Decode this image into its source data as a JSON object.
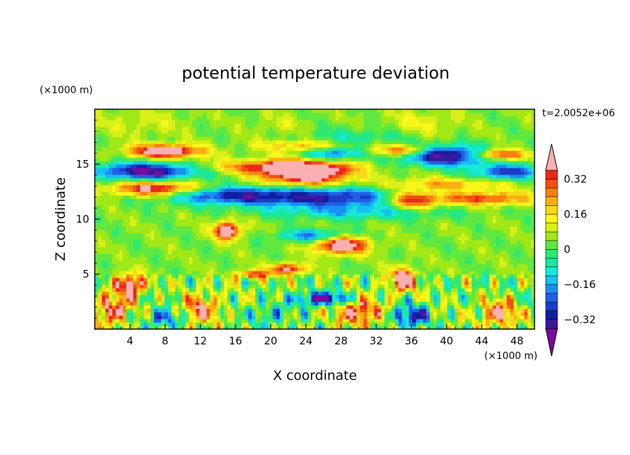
{
  "chart_data": {
    "type": "heatmap",
    "title": "potential temperature deviation",
    "xlabel": "X coordinate",
    "ylabel": "Z coordinate",
    "x_unit": "(×1000 m)",
    "y_unit": "(×1000 m)",
    "time_label": "t=2.0052e+06",
    "xlim": [
      0,
      50
    ],
    "ylim": [
      0,
      20
    ],
    "x_ticks": [
      "4",
      "8",
      "12",
      "16",
      "20",
      "24",
      "28",
      "32",
      "36",
      "40",
      "44",
      "48"
    ],
    "x_tick_values": [
      4,
      8,
      12,
      16,
      20,
      24,
      28,
      32,
      36,
      40,
      44,
      48
    ],
    "y_ticks": [
      "5",
      "10",
      "15"
    ],
    "y_tick_values": [
      5,
      10,
      15
    ],
    "colorbar": {
      "levels": [
        -0.44,
        -0.4,
        -0.36,
        -0.32,
        -0.28,
        -0.24,
        -0.2,
        -0.16,
        -0.12,
        -0.08,
        -0.04,
        0,
        0.04,
        0.08,
        0.12,
        0.16,
        0.2,
        0.24,
        0.28,
        0.32,
        0.36,
        0.4
      ],
      "labels": [
        "0.32",
        "0.16",
        "0",
        "−0.16",
        "−0.32"
      ],
      "label_values": [
        0.32,
        0.16,
        0,
        -0.16,
        -0.32
      ],
      "colors": [
        "#7a0a9e",
        "#3a1a9c",
        "#0f1fa0",
        "#1a3ec8",
        "#2060e8",
        "#1890f0",
        "#18c0f0",
        "#18e8d8",
        "#18e8a0",
        "#30e870",
        "#60e840",
        "#a0e818",
        "#d8f018",
        "#f8f818",
        "#f8d818",
        "#f8b010",
        "#f88010",
        "#f05010",
        "#e82818",
        "#f8b0b0"
      ],
      "extend": "both"
    },
    "field": {
      "description_none": "",
      "background_value": 0.0,
      "features": [
        {
          "x": 5,
          "y": 18.8,
          "sx": 5,
          "sy": 1.2,
          "v": 0.06
        },
        {
          "x": 37,
          "y": 18.8,
          "sx": 4,
          "sy": 1.2,
          "v": 0.08
        },
        {
          "x": 21,
          "y": 18.6,
          "sx": 3,
          "sy": 1.0,
          "v": 0.05
        },
        {
          "x": 30,
          "y": 17.5,
          "sx": 6,
          "sy": 0.8,
          "v": -0.1
        },
        {
          "x": 8,
          "y": 16.2,
          "sx": 4,
          "sy": 0.6,
          "v": 0.45
        },
        {
          "x": 24,
          "y": 16.7,
          "sx": 5,
          "sy": 0.5,
          "v": 0.2
        },
        {
          "x": 35,
          "y": 16.3,
          "sx": 3,
          "sy": 0.5,
          "v": 0.3
        },
        {
          "x": 46,
          "y": 15.9,
          "sx": 3,
          "sy": 0.5,
          "v": 0.35
        },
        {
          "x": 27,
          "y": 16.0,
          "sx": 3,
          "sy": 0.7,
          "v": -0.28
        },
        {
          "x": 40,
          "y": 15.8,
          "sx": 5,
          "sy": 0.9,
          "v": -0.42
        },
        {
          "x": 6,
          "y": 14.4,
          "sx": 6,
          "sy": 0.8,
          "v": -0.42
        },
        {
          "x": 20,
          "y": 14.8,
          "sx": 8,
          "sy": 0.6,
          "v": 0.25
        },
        {
          "x": 24,
          "y": 14.2,
          "sx": 5,
          "sy": 1.1,
          "v": 0.48
        },
        {
          "x": 47,
          "y": 14.3,
          "sx": 4,
          "sy": 0.7,
          "v": -0.3
        },
        {
          "x": 40,
          "y": 13.2,
          "sx": 7,
          "sy": 0.6,
          "v": 0.18
        },
        {
          "x": 7,
          "y": 12.8,
          "sx": 5,
          "sy": 0.7,
          "v": 0.4
        },
        {
          "x": 15,
          "y": 12.2,
          "sx": 8,
          "sy": 0.8,
          "v": -0.3
        },
        {
          "x": 27,
          "y": 12.0,
          "sx": 9,
          "sy": 1.0,
          "v": -0.32
        },
        {
          "x": 36,
          "y": 11.8,
          "sx": 3,
          "sy": 0.8,
          "v": 0.35
        },
        {
          "x": 44,
          "y": 11.9,
          "sx": 6,
          "sy": 0.6,
          "v": 0.28
        },
        {
          "x": 30,
          "y": 10.6,
          "sx": 10,
          "sy": 0.6,
          "v": -0.14
        },
        {
          "x": 15,
          "y": 9.0,
          "sx": 1.5,
          "sy": 0.8,
          "v": 0.45
        },
        {
          "x": 28,
          "y": 7.7,
          "sx": 3,
          "sy": 0.8,
          "v": 0.45
        },
        {
          "x": 25,
          "y": 8.5,
          "sx": 4,
          "sy": 0.6,
          "v": -0.25
        },
        {
          "x": 22,
          "y": 5.5,
          "sx": 2,
          "sy": 0.5,
          "v": 0.35
        },
        {
          "x": 18,
          "y": 5.0,
          "sx": 2,
          "sy": 0.4,
          "v": 0.3
        },
        {
          "x": 4,
          "y": 4.0,
          "sx": 1.5,
          "sy": 1.0,
          "v": 0.45
        },
        {
          "x": 35,
          "y": 4.5,
          "sx": 1.5,
          "sy": 1.0,
          "v": 0.45
        },
        {
          "x": 2,
          "y": 1.8,
          "sx": 2,
          "sy": 1.3,
          "v": 0.32
        },
        {
          "x": 12,
          "y": 1.8,
          "sx": 2,
          "sy": 1.3,
          "v": 0.3
        },
        {
          "x": 30,
          "y": 1.6,
          "sx": 2.5,
          "sy": 1.2,
          "v": 0.34
        },
        {
          "x": 46,
          "y": 1.5,
          "sx": 2,
          "sy": 1.2,
          "v": 0.3
        },
        {
          "x": 26,
          "y": 2.8,
          "sx": 3,
          "sy": 0.6,
          "v": -0.42
        },
        {
          "x": 8,
          "y": 1.0,
          "sx": 2,
          "sy": 0.8,
          "v": -0.25
        },
        {
          "x": 36,
          "y": 1.2,
          "sx": 2,
          "sy": 1.0,
          "v": -0.35
        },
        {
          "x": 20,
          "y": 1.4,
          "sx": 2.5,
          "sy": 1.0,
          "v": -0.15
        }
      ]
    }
  }
}
